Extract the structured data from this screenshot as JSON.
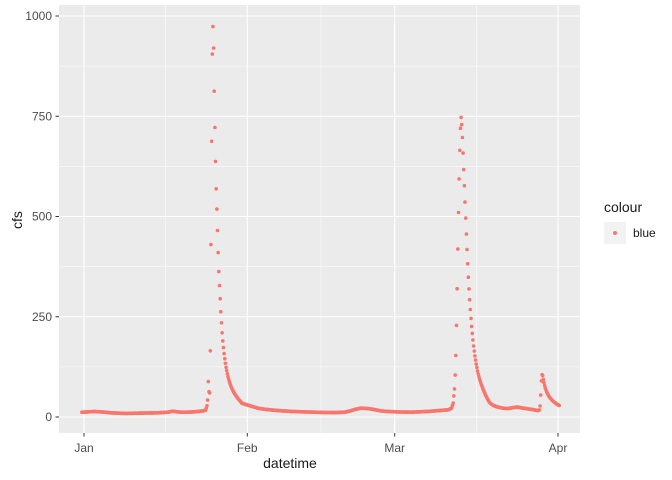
{
  "chart_data": {
    "type": "scatter",
    "title": "",
    "xlabel": "datetime",
    "ylabel": "cfs",
    "x_unit": "days since Jan 1",
    "x_range": [
      -4.75,
      94.18
    ],
    "y_range": [
      -39.9,
      1027.4
    ],
    "grid": true,
    "x_ticks": [
      {
        "label": "Jan",
        "day": 0
      },
      {
        "label": "Feb",
        "day": 31
      },
      {
        "label": "Mar",
        "day": 59
      },
      {
        "label": "Apr",
        "day": 90
      }
    ],
    "x_minor_days": [
      15.5,
      45,
      74.5
    ],
    "y_ticks": [
      {
        "label": "0",
        "value": 0
      },
      {
        "label": "250",
        "value": 250
      },
      {
        "label": "500",
        "value": 500
      },
      {
        "label": "750",
        "value": 750
      },
      {
        "label": "1000",
        "value": 1000
      }
    ],
    "y_minor": [
      125,
      375,
      625,
      875
    ],
    "legend": {
      "position": "right",
      "title": "colour",
      "entries": [
        {
          "label": "blue",
          "color": "#F8766D"
        }
      ]
    },
    "colors": {
      "background": "#FFFFFF",
      "panel": "#EBEBEB",
      "grid_major": "#FFFFFF",
      "grid_minor": "#FFFFFF",
      "point": "#F8766D",
      "tick_label": "#4D4D4D",
      "axis_title": "#1A1A1A",
      "tick_mark": "#333333",
      "legend_key": "#F2F2F2"
    },
    "sample_interval_hours": 3,
    "series": [
      {
        "name": "blue",
        "color": "#F8766D",
        "points_day_cfs": [
          [
            -0.4,
            12
          ],
          [
            0,
            12
          ],
          [
            1,
            13
          ],
          [
            2,
            13.5
          ],
          [
            3,
            13
          ],
          [
            4,
            12
          ],
          [
            5,
            10.5
          ],
          [
            6.5,
            9.5
          ],
          [
            8,
            9
          ],
          [
            10,
            9.5
          ],
          [
            12,
            10
          ],
          [
            14,
            10.5
          ],
          [
            16,
            12
          ],
          [
            16.8,
            14.5
          ],
          [
            17.6,
            13
          ],
          [
            18.5,
            12
          ],
          [
            19.5,
            12
          ],
          [
            20.5,
            12.5
          ],
          [
            21.5,
            13.5
          ],
          [
            22.5,
            15
          ],
          [
            23.1,
            17
          ],
          [
            23.35,
            28
          ],
          [
            23.5,
            45
          ],
          [
            23.62,
            97
          ],
          [
            23.75,
            55
          ],
          [
            23.85,
            60
          ],
          [
            23.95,
            120
          ],
          [
            24.05,
            300
          ],
          [
            24.15,
            560
          ],
          [
            24.25,
            730
          ],
          [
            24.35,
            905
          ],
          [
            24.45,
            978
          ],
          [
            24.55,
            960
          ],
          [
            24.65,
            880
          ],
          [
            24.75,
            790
          ],
          [
            24.85,
            722
          ],
          [
            24.95,
            650
          ],
          [
            25.05,
            600
          ],
          [
            25.15,
            538
          ],
          [
            25.25,
            512
          ],
          [
            25.35,
            465
          ],
          [
            25.45,
            420
          ],
          [
            25.55,
            380
          ],
          [
            25.65,
            345
          ],
          [
            25.75,
            322
          ],
          [
            25.85,
            295
          ],
          [
            25.95,
            268
          ],
          [
            26.1,
            235
          ],
          [
            26.25,
            205
          ],
          [
            26.4,
            182
          ],
          [
            26.6,
            158
          ],
          [
            26.8,
            138
          ],
          [
            27,
            122
          ],
          [
            27.3,
            103
          ],
          [
            27.6,
            88
          ],
          [
            28,
            73
          ],
          [
            28.5,
            60
          ],
          [
            29,
            50
          ],
          [
            29.5,
            42
          ],
          [
            30,
            34
          ],
          [
            31.5,
            28
          ],
          [
            33,
            22
          ],
          [
            34.5,
            19
          ],
          [
            36,
            17
          ],
          [
            38,
            15
          ],
          [
            40,
            13.5
          ],
          [
            42.5,
            12.5
          ],
          [
            45,
            11.5
          ],
          [
            47.5,
            11
          ],
          [
            49.5,
            12
          ],
          [
            50.5,
            15
          ],
          [
            51.5,
            19
          ],
          [
            52.5,
            22
          ],
          [
            53.5,
            21.5
          ],
          [
            54.5,
            20
          ],
          [
            55.5,
            17.5
          ],
          [
            56.5,
            15
          ],
          [
            58,
            13.5
          ],
          [
            60,
            12.5
          ],
          [
            62,
            12
          ],
          [
            64,
            13
          ],
          [
            65.5,
            14
          ],
          [
            67,
            15.5
          ],
          [
            68.3,
            17
          ],
          [
            69.2,
            18
          ],
          [
            69.8,
            22
          ],
          [
            70.1,
            35
          ],
          [
            70.35,
            70
          ],
          [
            70.55,
            125
          ],
          [
            70.7,
            210
          ],
          [
            70.85,
            320
          ],
          [
            70.95,
            400
          ],
          [
            71.05,
            475
          ],
          [
            71.15,
            545
          ],
          [
            71.25,
            610
          ],
          [
            71.35,
            665
          ],
          [
            71.45,
            712
          ],
          [
            71.55,
            745
          ],
          [
            71.62,
            748
          ],
          [
            71.7,
            735
          ],
          [
            71.8,
            712
          ],
          [
            71.9,
            682
          ],
          [
            72,
            650
          ],
          [
            72.1,
            617
          ],
          [
            72.2,
            585
          ],
          [
            72.3,
            552
          ],
          [
            72.4,
            520
          ],
          [
            72.5,
            488
          ],
          [
            72.6,
            456
          ],
          [
            72.7,
            425
          ],
          [
            72.8,
            396
          ],
          [
            72.9,
            368
          ],
          [
            73,
            342
          ],
          [
            73.15,
            308
          ],
          [
            73.3,
            277
          ],
          [
            73.45,
            250
          ],
          [
            73.6,
            226
          ],
          [
            73.8,
            198
          ],
          [
            74,
            174
          ],
          [
            74.25,
            150
          ],
          [
            74.5,
            130
          ],
          [
            74.8,
            110
          ],
          [
            75.1,
            95
          ],
          [
            75.5,
            79
          ],
          [
            76,
            62
          ],
          [
            76.5,
            48
          ],
          [
            77,
            36
          ],
          [
            77.7,
            29
          ],
          [
            78.5,
            25
          ],
          [
            79.5,
            22
          ],
          [
            80.5,
            21
          ],
          [
            81.3,
            23
          ],
          [
            82.2,
            25
          ],
          [
            83,
            23
          ],
          [
            84,
            21
          ],
          [
            85,
            19
          ],
          [
            85.8,
            17
          ],
          [
            86.3,
            16
          ],
          [
            86.5,
            18
          ],
          [
            86.65,
            32
          ],
          [
            86.75,
            62
          ],
          [
            86.85,
            90
          ],
          [
            86.95,
            105
          ],
          [
            87.05,
            107
          ],
          [
            87.2,
            95
          ],
          [
            87.4,
            82
          ],
          [
            87.6,
            72
          ],
          [
            87.9,
            61
          ],
          [
            88.3,
            51
          ],
          [
            88.8,
            43
          ],
          [
            89.3,
            37
          ],
          [
            89.8,
            32
          ],
          [
            90.3,
            28
          ]
        ]
      }
    ]
  }
}
